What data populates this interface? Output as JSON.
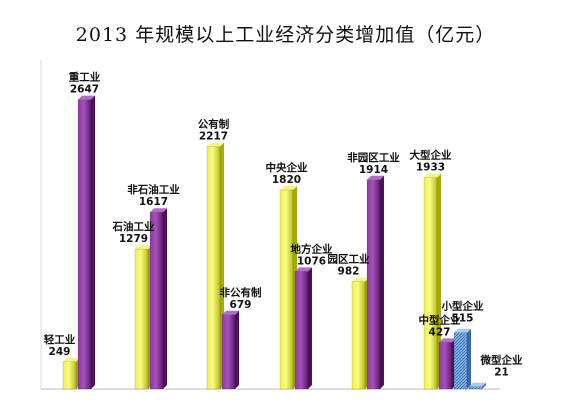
{
  "chart_data": {
    "type": "bar",
    "title": "2013 年规模以上工业经济分类增加值（亿元）",
    "ylim": [
      0,
      2900
    ],
    "grid": false,
    "groups": [
      {
        "bars": [
          {
            "label": "轻工业",
            "value": 249,
            "color": "yellow"
          },
          {
            "label": "重工业",
            "value": 2647,
            "color": "purple"
          }
        ]
      },
      {
        "bars": [
          {
            "label": "石油工业",
            "value": 1279,
            "color": "yellow"
          },
          {
            "label": "非石油工业",
            "value": 1617,
            "color": "purple"
          }
        ]
      },
      {
        "bars": [
          {
            "label": "公有制",
            "value": 2217,
            "color": "yellow"
          },
          {
            "label": "非公有制",
            "value": 679,
            "color": "purple"
          }
        ]
      },
      {
        "bars": [
          {
            "label": "中央企业",
            "value": 1820,
            "color": "yellow"
          },
          {
            "label": "地方企业",
            "value": 1076,
            "color": "purple"
          }
        ]
      },
      {
        "bars": [
          {
            "label": "园区工业",
            "value": 982,
            "color": "yellow"
          },
          {
            "label": "非园区工业",
            "value": 1914,
            "color": "purple"
          }
        ]
      },
      {
        "bars": [
          {
            "label": "大型企业",
            "value": 1933,
            "color": "yellow"
          },
          {
            "label": "中型企业",
            "value": 427,
            "color": "purple"
          },
          {
            "label": "小型企业",
            "value": 515,
            "color": "blue"
          },
          {
            "label": "微型企业",
            "value": 21,
            "color": "blue"
          }
        ]
      }
    ],
    "colors": {
      "yellow": "#d8e020",
      "purple": "#7b2a8e",
      "blue": "#6a9fd8"
    }
  }
}
